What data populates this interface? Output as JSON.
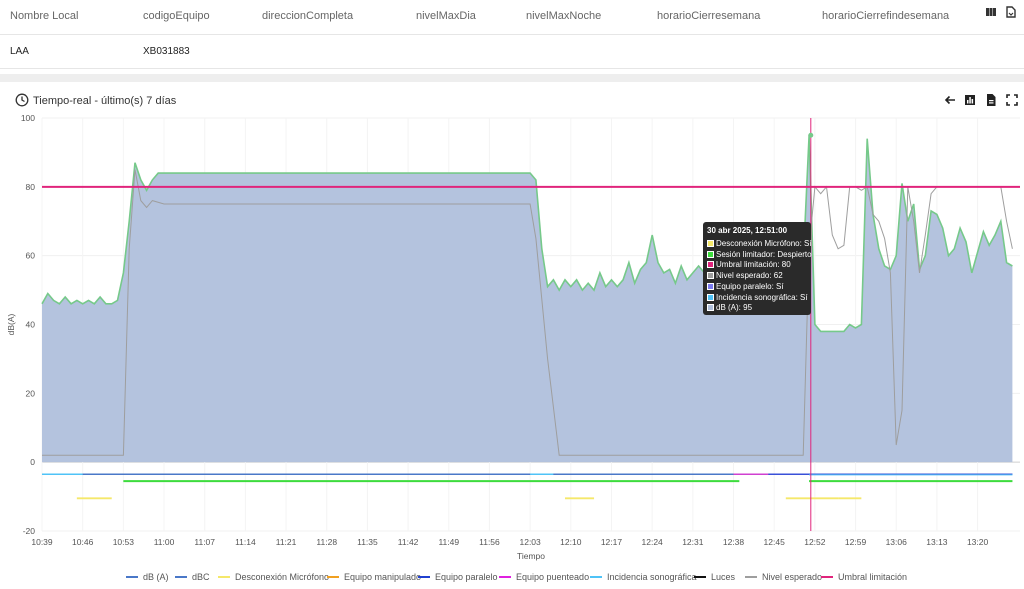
{
  "table": {
    "headers": [
      "Nombre Local",
      "codigoEquipo",
      "direccionCompleta",
      "nivelMaxDia",
      "nivelMaxNoche",
      "horarioCierresemana",
      "horarioCierrefindesemana"
    ],
    "row": [
      "LAA",
      "XB031883",
      "",
      "",
      "",
      "",
      ""
    ],
    "icons": [
      "columns-icon",
      "export-file-icon"
    ]
  },
  "panel": {
    "title": "Tiempo-real - último(s) 7 días",
    "toolbar_icons": [
      "back-arrow-icon",
      "bar-chart-icon",
      "pdf-file-icon",
      "fullscreen-icon"
    ]
  },
  "tooltip": {
    "title": "30 abr 2025, 12:51:00",
    "rows": [
      {
        "text": "Desconexión Micrófono: Sí",
        "color": "#f5e86a"
      },
      {
        "text": "Sesión limitador: Despierto",
        "color": "#3ddc3d"
      },
      {
        "text": "Umbral limitación: 80",
        "color": "#e0247c"
      },
      {
        "text": "Nivel esperado: 62",
        "color": "#9e9e9e"
      },
      {
        "text": "Equipo paralelo: Sí",
        "color": "#7b7bf0"
      },
      {
        "text": "Incidencia sonográfica: Sí",
        "color": "#4fc3f7"
      },
      {
        "text": "dB (A): 95",
        "color": "#b0c0dc"
      }
    ]
  },
  "chart_data": {
    "type": "area",
    "title": "",
    "xlabel": "Tiempo",
    "ylabel": "dB(A)",
    "ylim": [
      -20,
      100
    ],
    "yticks": [
      -20,
      0,
      20,
      40,
      60,
      80,
      100
    ],
    "xlim": [
      "10:39",
      "13:26"
    ],
    "xticks": [
      "10:39",
      "10:46",
      "10:53",
      "11:00",
      "11:07",
      "11:14",
      "11:21",
      "11:28",
      "11:35",
      "11:42",
      "11:49",
      "11:56",
      "12:03",
      "12:10",
      "12:17",
      "12:24",
      "12:31",
      "12:38",
      "12:45",
      "12:52",
      "12:59",
      "13:06",
      "13:13",
      "13:20"
    ],
    "crosshair_time": "12:51",
    "colors": {
      "dBA_fill": "#b0c0dc",
      "dBA_line": "#76c98a",
      "expected": "#9e9e9e",
      "threshold": "#e0247c",
      "mic": "#f5e86a",
      "limiter": "#3ddc3d",
      "parallel": "#3a50d8",
      "sono": "#4fc3f7",
      "bridged": "#d040d0",
      "dBC": "#4a78c8"
    },
    "series": [
      {
        "name": "dB (A)",
        "points": [
          [
            "10:39",
            46
          ],
          [
            "10:40",
            49
          ],
          [
            "10:41",
            47
          ],
          [
            "10:42",
            46
          ],
          [
            "10:43",
            48
          ],
          [
            "10:44",
            46
          ],
          [
            "10:45",
            47
          ],
          [
            "10:46",
            46
          ],
          [
            "10:47",
            47
          ],
          [
            "10:48",
            46
          ],
          [
            "10:49",
            48
          ],
          [
            "10:50",
            46
          ],
          [
            "10:51",
            46
          ],
          [
            "10:52",
            47
          ],
          [
            "10:53",
            55
          ],
          [
            "10:54",
            70
          ],
          [
            "10:55",
            87
          ],
          [
            "10:56",
            82
          ],
          [
            "10:57",
            79
          ],
          [
            "10:58",
            82
          ],
          [
            "10:59",
            84
          ],
          [
            "11:00",
            84
          ],
          [
            "11:10",
            84
          ],
          [
            "11:20",
            84
          ],
          [
            "11:30",
            84
          ],
          [
            "11:40",
            84
          ],
          [
            "11:50",
            84
          ],
          [
            "12:00",
            84
          ],
          [
            "12:03",
            84
          ],
          [
            "12:04",
            82
          ],
          [
            "12:05",
            62
          ],
          [
            "12:06",
            51
          ],
          [
            "12:07",
            53
          ],
          [
            "12:08",
            50
          ],
          [
            "12:09",
            53
          ],
          [
            "12:10",
            51
          ],
          [
            "12:11",
            53
          ],
          [
            "12:12",
            50
          ],
          [
            "12:13",
            52
          ],
          [
            "12:14",
            50
          ],
          [
            "12:15",
            55
          ],
          [
            "12:16",
            51
          ],
          [
            "12:17",
            53
          ],
          [
            "12:18",
            51
          ],
          [
            "12:19",
            53
          ],
          [
            "12:20",
            58
          ],
          [
            "12:21",
            52
          ],
          [
            "12:22",
            56
          ],
          [
            "12:23",
            58
          ],
          [
            "12:24",
            66
          ],
          [
            "12:25",
            58
          ],
          [
            "12:26",
            55
          ],
          [
            "12:27",
            56
          ],
          [
            "12:28",
            52
          ],
          [
            "12:29",
            57
          ],
          [
            "12:30",
            53
          ],
          [
            "12:31",
            55
          ],
          [
            "12:32",
            57
          ],
          [
            "12:33",
            55
          ],
          [
            "12:34",
            56
          ],
          [
            "12:35",
            54
          ],
          [
            "12:36",
            55
          ],
          [
            "12:37",
            56
          ],
          [
            "12:38",
            54
          ],
          [
            "12:39",
            57
          ],
          [
            "12:40",
            60
          ],
          [
            "12:41",
            57
          ],
          [
            "12:42",
            58
          ],
          [
            "12:43",
            56
          ],
          [
            "12:44",
            58
          ],
          [
            "12:45",
            55
          ],
          [
            "12:46",
            57
          ],
          [
            "12:47",
            56
          ],
          [
            "12:48",
            55
          ],
          [
            "12:49",
            56
          ],
          [
            "12:50",
            58
          ],
          [
            "12:51",
            95
          ],
          [
            "12:52",
            40
          ],
          [
            "12:53",
            38
          ],
          [
            "12:55",
            38
          ],
          [
            "12:57",
            38
          ],
          [
            "12:58",
            40
          ],
          [
            "12:59",
            39
          ],
          [
            "13:00",
            40
          ],
          [
            "13:01",
            94
          ],
          [
            "13:02",
            72
          ],
          [
            "13:03",
            62
          ],
          [
            "13:04",
            57
          ],
          [
            "13:05",
            56
          ],
          [
            "13:06",
            60
          ],
          [
            "13:07",
            81
          ],
          [
            "13:08",
            70
          ],
          [
            "13:09",
            75
          ],
          [
            "13:10",
            56
          ],
          [
            "13:11",
            60
          ],
          [
            "13:12",
            73
          ],
          [
            "13:13",
            72
          ],
          [
            "13:14",
            68
          ],
          [
            "13:15",
            60
          ],
          [
            "13:16",
            62
          ],
          [
            "13:17",
            68
          ],
          [
            "13:18",
            64
          ],
          [
            "13:19",
            55
          ],
          [
            "13:20",
            61
          ],
          [
            "13:21",
            67
          ],
          [
            "13:22",
            63
          ],
          [
            "13:23",
            66
          ],
          [
            "13:24",
            70
          ],
          [
            "13:25",
            58
          ],
          [
            "13:26",
            57
          ]
        ]
      },
      {
        "name": "Nivel esperado",
        "points": [
          [
            "10:39",
            2
          ],
          [
            "10:50",
            2
          ],
          [
            "10:53",
            2
          ],
          [
            "10:54",
            62
          ],
          [
            "10:55",
            85
          ],
          [
            "10:56",
            76
          ],
          [
            "10:57",
            74
          ],
          [
            "10:58",
            76
          ],
          [
            "11:00",
            75
          ],
          [
            "11:30",
            75
          ],
          [
            "12:00",
            75
          ],
          [
            "12:03",
            75
          ],
          [
            "12:04",
            65
          ],
          [
            "12:06",
            30
          ],
          [
            "12:08",
            2
          ],
          [
            "12:30",
            2
          ],
          [
            "12:50",
            2
          ],
          [
            "12:51",
            62
          ],
          [
            "12:52",
            80
          ],
          [
            "12:53",
            78
          ],
          [
            "12:54",
            80
          ],
          [
            "12:55",
            66
          ],
          [
            "12:56",
            62
          ],
          [
            "12:57",
            63
          ],
          [
            "12:58",
            80
          ],
          [
            "12:59",
            80
          ],
          [
            "13:00",
            79
          ],
          [
            "13:01",
            80
          ],
          [
            "13:02",
            72
          ],
          [
            "13:03",
            70
          ],
          [
            "13:04",
            65
          ],
          [
            "13:05",
            55
          ],
          [
            "13:06",
            5
          ],
          [
            "13:07",
            15
          ],
          [
            "13:08",
            80
          ],
          [
            "13:09",
            70
          ],
          [
            "13:10",
            55
          ],
          [
            "13:11",
            66
          ],
          [
            "13:12",
            78
          ],
          [
            "13:13",
            80
          ],
          [
            "13:20",
            80
          ],
          [
            "13:24",
            80
          ],
          [
            "13:25",
            70
          ],
          [
            "13:26",
            62
          ]
        ]
      },
      {
        "name": "Umbral limitación",
        "value": 80
      }
    ],
    "legend": [
      "dB (A)",
      "dBC",
      "Desconexión Micrófono",
      "Equipo manipulado",
      "Equipo paralelo",
      "Equipo puenteado",
      "Incidencia sonográfica",
      "Luces",
      "Nivel esperado",
      "Umbral limitación"
    ],
    "legend_colors": [
      "#4a78c8",
      "#4a78c8",
      "#f5e86a",
      "#f0a020",
      "#2040d0",
      "#e020e0",
      "#4fc3f7",
      "#111111",
      "#9e9e9e",
      "#e0247c"
    ],
    "legend_placement": "bottom"
  }
}
